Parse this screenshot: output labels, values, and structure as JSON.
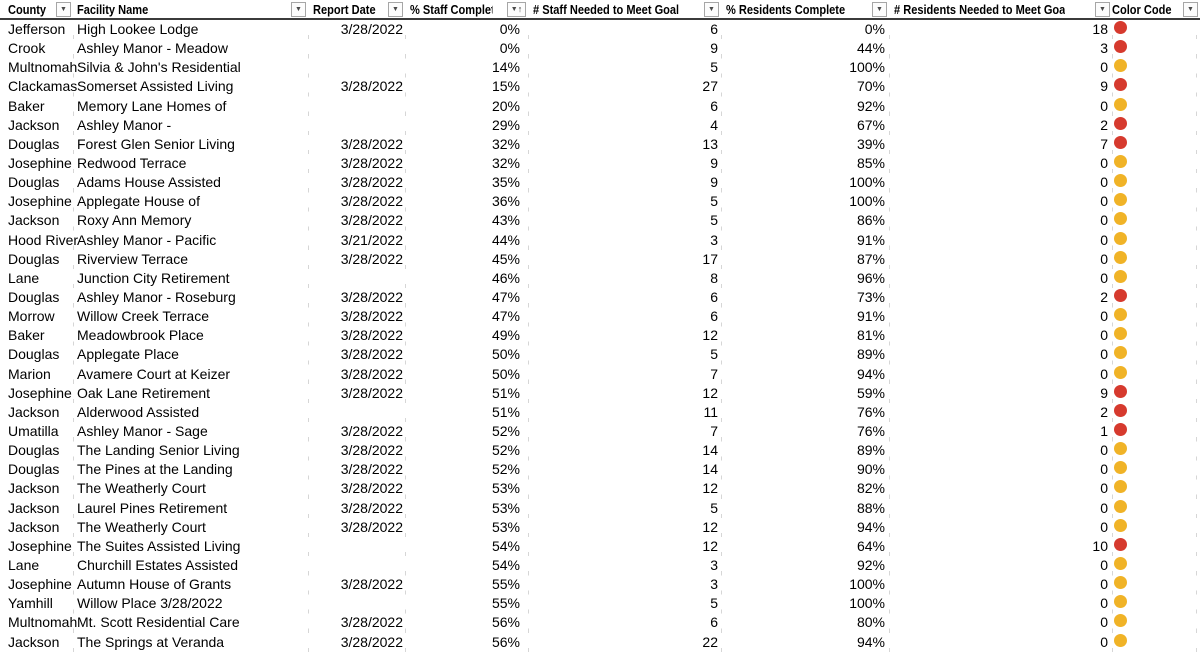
{
  "table": {
    "columns": [
      "County",
      "Facility Name",
      "Report Date",
      "% Staff Complete",
      "# Staff Needed to Meet Goal",
      "% Residents Complete",
      "# Residents Needed to Meet Goa",
      "Color Code"
    ],
    "sorted_column_index": 3,
    "sort_direction": "ascending",
    "color_codes": {
      "red": "#D63A2E",
      "yellow": "#F0B327"
    },
    "rows": [
      {
        "county": "Jefferson",
        "facility": "High Lookee Lodge",
        "report_date": "3/28/2022",
        "staff_complete": "0%",
        "staff_needed": "6",
        "residents_complete": "0%",
        "residents_needed": "18",
        "color": "red"
      },
      {
        "county": "Crook",
        "facility": "Ashley Manor - Meadow",
        "report_date": "",
        "staff_complete": "0%",
        "staff_needed": "9",
        "residents_complete": "44%",
        "residents_needed": "3",
        "color": "red"
      },
      {
        "county": "Multnomah",
        "facility": "Silvia & John's Residential",
        "report_date": "",
        "staff_complete": "14%",
        "staff_needed": "5",
        "residents_complete": "100%",
        "residents_needed": "0",
        "color": "yellow"
      },
      {
        "county": "Clackamas",
        "facility": "Somerset Assisted Living",
        "report_date": "3/28/2022",
        "staff_complete": "15%",
        "staff_needed": "27",
        "residents_complete": "70%",
        "residents_needed": "9",
        "color": "red"
      },
      {
        "county": "Baker",
        "facility": "Memory Lane Homes of",
        "report_date": "",
        "staff_complete": "20%",
        "staff_needed": "6",
        "residents_complete": "92%",
        "residents_needed": "0",
        "color": "yellow"
      },
      {
        "county": "Jackson",
        "facility": "Ashley Manor -",
        "report_date": "",
        "staff_complete": "29%",
        "staff_needed": "4",
        "residents_complete": "67%",
        "residents_needed": "2",
        "color": "red"
      },
      {
        "county": "Douglas",
        "facility": "Forest Glen Senior Living",
        "report_date": "3/28/2022",
        "staff_complete": "32%",
        "staff_needed": "13",
        "residents_complete": "39%",
        "residents_needed": "7",
        "color": "red"
      },
      {
        "county": "Josephine",
        "facility": "Redwood Terrace",
        "report_date": "3/28/2022",
        "staff_complete": "32%",
        "staff_needed": "9",
        "residents_complete": "85%",
        "residents_needed": "0",
        "color": "yellow"
      },
      {
        "county": "Douglas",
        "facility": "Adams House Assisted",
        "report_date": "3/28/2022",
        "staff_complete": "35%",
        "staff_needed": "9",
        "residents_complete": "100%",
        "residents_needed": "0",
        "color": "yellow"
      },
      {
        "county": "Josephine",
        "facility": "Applegate House of",
        "report_date": "3/28/2022",
        "staff_complete": "36%",
        "staff_needed": "5",
        "residents_complete": "100%",
        "residents_needed": "0",
        "color": "yellow"
      },
      {
        "county": "Jackson",
        "facility": "Roxy Ann Memory",
        "report_date": "3/28/2022",
        "staff_complete": "43%",
        "staff_needed": "5",
        "residents_complete": "86%",
        "residents_needed": "0",
        "color": "yellow"
      },
      {
        "county": "Hood River",
        "facility": "Ashley Manor - Pacific",
        "report_date": "3/21/2022",
        "staff_complete": "44%",
        "staff_needed": "3",
        "residents_complete": "91%",
        "residents_needed": "0",
        "color": "yellow"
      },
      {
        "county": "Douglas",
        "facility": "Riverview Terrace",
        "report_date": "3/28/2022",
        "staff_complete": "45%",
        "staff_needed": "17",
        "residents_complete": "87%",
        "residents_needed": "0",
        "color": "yellow"
      },
      {
        "county": "Lane",
        "facility": "Junction City Retirement",
        "report_date": "",
        "staff_complete": "46%",
        "staff_needed": "8",
        "residents_complete": "96%",
        "residents_needed": "0",
        "color": "yellow"
      },
      {
        "county": "Douglas",
        "facility": "Ashley Manor - Roseburg",
        "report_date": "3/28/2022",
        "staff_complete": "47%",
        "staff_needed": "6",
        "residents_complete": "73%",
        "residents_needed": "2",
        "color": "red"
      },
      {
        "county": "Morrow",
        "facility": "Willow Creek Terrace",
        "report_date": "3/28/2022",
        "staff_complete": "47%",
        "staff_needed": "6",
        "residents_complete": "91%",
        "residents_needed": "0",
        "color": "yellow"
      },
      {
        "county": "Baker",
        "facility": "Meadowbrook Place",
        "report_date": "3/28/2022",
        "staff_complete": "49%",
        "staff_needed": "12",
        "residents_complete": "81%",
        "residents_needed": "0",
        "color": "yellow"
      },
      {
        "county": "Douglas",
        "facility": "Applegate Place",
        "report_date": "3/28/2022",
        "staff_complete": "50%",
        "staff_needed": "5",
        "residents_complete": "89%",
        "residents_needed": "0",
        "color": "yellow"
      },
      {
        "county": "Marion",
        "facility": "Avamere Court at Keizer",
        "report_date": "3/28/2022",
        "staff_complete": "50%",
        "staff_needed": "7",
        "residents_complete": "94%",
        "residents_needed": "0",
        "color": "yellow"
      },
      {
        "county": "Josephine",
        "facility": "Oak Lane Retirement",
        "report_date": "3/28/2022",
        "staff_complete": "51%",
        "staff_needed": "12",
        "residents_complete": "59%",
        "residents_needed": "9",
        "color": "red"
      },
      {
        "county": "Jackson",
        "facility": "Alderwood Assisted",
        "report_date": "",
        "staff_complete": "51%",
        "staff_needed": "11",
        "residents_complete": "76%",
        "residents_needed": "2",
        "color": "red"
      },
      {
        "county": "Umatilla",
        "facility": "Ashley Manor - Sage",
        "report_date": "3/28/2022",
        "staff_complete": "52%",
        "staff_needed": "7",
        "residents_complete": "76%",
        "residents_needed": "1",
        "color": "red"
      },
      {
        "county": "Douglas",
        "facility": "The Landing Senior Living",
        "report_date": "3/28/2022",
        "staff_complete": "52%",
        "staff_needed": "14",
        "residents_complete": "89%",
        "residents_needed": "0",
        "color": "yellow"
      },
      {
        "county": "Douglas",
        "facility": "The Pines at the Landing",
        "report_date": "3/28/2022",
        "staff_complete": "52%",
        "staff_needed": "14",
        "residents_complete": "90%",
        "residents_needed": "0",
        "color": "yellow"
      },
      {
        "county": "Jackson",
        "facility": "The Weatherly Court",
        "report_date": "3/28/2022",
        "staff_complete": "53%",
        "staff_needed": "12",
        "residents_complete": "82%",
        "residents_needed": "0",
        "color": "yellow"
      },
      {
        "county": "Jackson",
        "facility": "Laurel Pines Retirement",
        "report_date": "3/28/2022",
        "staff_complete": "53%",
        "staff_needed": "5",
        "residents_complete": "88%",
        "residents_needed": "0",
        "color": "yellow"
      },
      {
        "county": "Jackson",
        "facility": "The Weatherly Court",
        "report_date": "3/28/2022",
        "staff_complete": "53%",
        "staff_needed": "12",
        "residents_complete": "94%",
        "residents_needed": "0",
        "color": "yellow"
      },
      {
        "county": "Josephine",
        "facility": "The Suites Assisted Living",
        "report_date": "",
        "staff_complete": "54%",
        "staff_needed": "12",
        "residents_complete": "64%",
        "residents_needed": "10",
        "color": "red"
      },
      {
        "county": "Lane",
        "facility": "Churchill Estates Assisted",
        "report_date": "",
        "staff_complete": "54%",
        "staff_needed": "3",
        "residents_complete": "92%",
        "residents_needed": "0",
        "color": "yellow"
      },
      {
        "county": "Josephine",
        "facility": "Autumn House of Grants",
        "report_date": "3/28/2022",
        "staff_complete": "55%",
        "staff_needed": "3",
        "residents_complete": "100%",
        "residents_needed": "0",
        "color": "yellow"
      },
      {
        "county": "Yamhill",
        "facility": "Willow Place 3/28/2022",
        "report_date": "",
        "staff_complete": "55%",
        "staff_needed": "5",
        "residents_complete": "100%",
        "residents_needed": "0",
        "color": "yellow"
      },
      {
        "county": "Multnomah",
        "facility": "Mt. Scott Residential Care",
        "report_date": "3/28/2022",
        "staff_complete": "56%",
        "staff_needed": "6",
        "residents_complete": "80%",
        "residents_needed": "0",
        "color": "yellow"
      },
      {
        "county": "Jackson",
        "facility": "The Springs at Veranda",
        "report_date": "3/28/2022",
        "staff_complete": "56%",
        "staff_needed": "22",
        "residents_complete": "94%",
        "residents_needed": "0",
        "color": "yellow"
      }
    ]
  },
  "icons": {
    "filter_dropdown": "▼",
    "sort_ascending": "↑"
  }
}
